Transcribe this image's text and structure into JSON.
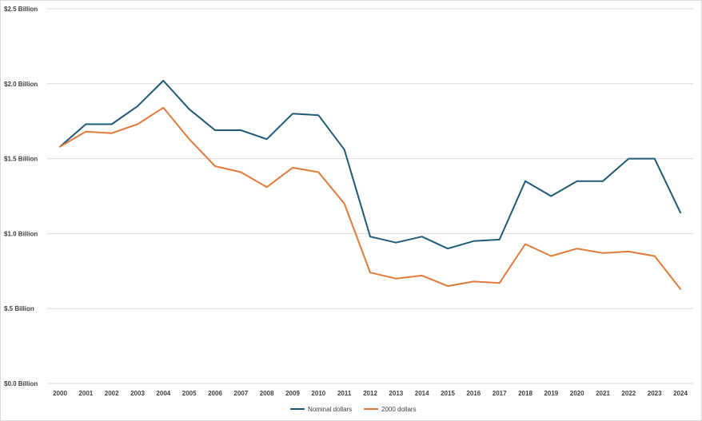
{
  "chart_data": {
    "type": "line",
    "title": "",
    "xlabel": "",
    "ylabel": "",
    "x": [
      "2000",
      "2001",
      "2002",
      "2003",
      "2004",
      "2005",
      "2006",
      "2007",
      "2008",
      "2009",
      "2010",
      "2011",
      "2012",
      "2013",
      "2014",
      "2015",
      "2016",
      "2017",
      "2018",
      "2019",
      "2020",
      "2021",
      "2022",
      "2023",
      "2024"
    ],
    "y_ticks": [
      {
        "value": 0.0,
        "label": "$0.0 Billion"
      },
      {
        "value": 0.5,
        "label": "$.5 Billion"
      },
      {
        "value": 1.0,
        "label": "$1.0 Billion"
      },
      {
        "value": 1.5,
        "label": "$1.5 Billion"
      },
      {
        "value": 2.0,
        "label": "$2.0 Billion"
      },
      {
        "value": 2.5,
        "label": "$2.5 Billion"
      }
    ],
    "ylim": [
      0,
      2.5
    ],
    "grid": true,
    "legend_position": "bottom",
    "series": [
      {
        "name": "Nominal dollars",
        "color": "#1f5a78",
        "values": [
          1.58,
          1.73,
          1.73,
          1.85,
          2.02,
          1.83,
          1.69,
          1.69,
          1.63,
          1.8,
          1.79,
          1.56,
          0.98,
          0.94,
          0.98,
          0.9,
          0.95,
          0.96,
          1.35,
          1.25,
          1.35,
          1.35,
          1.5,
          1.5,
          1.14
        ]
      },
      {
        "name": "2000 dollars",
        "color": "#e07a3a",
        "values": [
          1.58,
          1.68,
          1.67,
          1.73,
          1.84,
          1.63,
          1.45,
          1.41,
          1.31,
          1.44,
          1.41,
          1.2,
          0.74,
          0.7,
          0.72,
          0.65,
          0.68,
          0.67,
          0.93,
          0.85,
          0.9,
          0.87,
          0.88,
          0.85,
          0.63
        ]
      }
    ]
  }
}
